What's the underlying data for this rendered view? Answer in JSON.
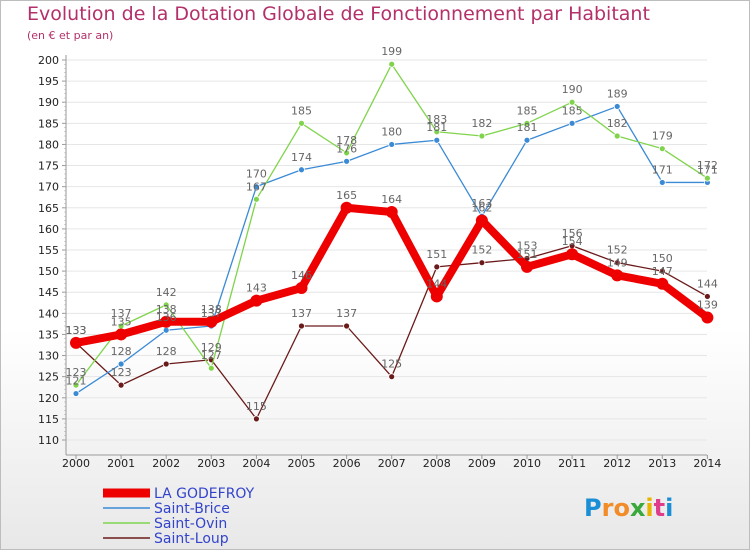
{
  "chart_data": {
    "type": "line",
    "title": "Evolution de la Dotation Globale de Fonctionnement par Habitant",
    "subtitle": "(en € et par an)",
    "xlabel": "",
    "ylabel": "",
    "ylim": [
      110,
      200
    ],
    "yticks": [
      110,
      115,
      120,
      125,
      130,
      135,
      140,
      145,
      150,
      155,
      160,
      165,
      170,
      175,
      180,
      185,
      190,
      195,
      200
    ],
    "categories": [
      "2000",
      "2001",
      "2002",
      "2003",
      "2004",
      "2005",
      "2006",
      "2007",
      "2008",
      "2009",
      "2010",
      "2011",
      "2012",
      "2013",
      "2014"
    ],
    "series": [
      {
        "name": "Saint-Loup",
        "color": "#6b1a1a",
        "values": [
          133,
          123,
          128,
          129,
          115,
          137,
          137,
          125,
          151,
          152,
          153,
          156,
          152,
          150,
          144
        ]
      },
      {
        "name": "Saint-Brice",
        "color": "#3a8ad6",
        "values": [
          121,
          128,
          136,
          137,
          170,
          174,
          176,
          180,
          181,
          163,
          181,
          185,
          189,
          171,
          171
        ]
      },
      {
        "name": "Saint-Ovin",
        "color": "#7fd44c",
        "values": [
          123,
          137,
          142,
          127,
          167,
          185,
          178,
          199,
          183,
          182,
          185,
          190,
          182,
          179,
          172
        ]
      },
      {
        "name": "LA GODEFROY",
        "color": "#ee0000",
        "values": [
          133,
          135,
          138,
          138,
          143,
          146,
          165,
          164,
          144,
          162,
          151,
          154,
          149,
          147,
          139
        ]
      }
    ],
    "legend": [
      "LA GODEFROY",
      "Saint-Brice",
      "Saint-Ovin",
      "Saint-Loup"
    ],
    "legend_position": "bottom-left"
  },
  "brand": {
    "text": "Proxiti"
  }
}
